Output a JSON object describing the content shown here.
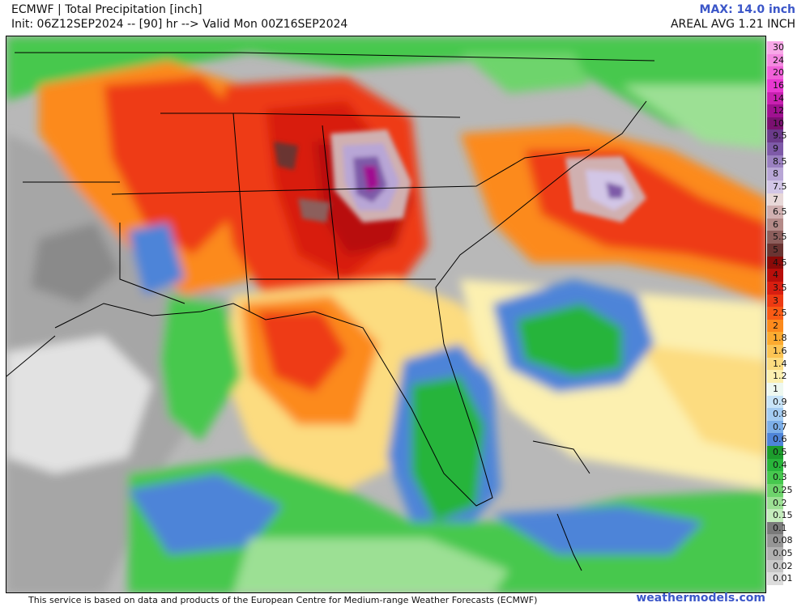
{
  "header": {
    "title": "ECMWF | Total Precipitation [inch]",
    "subtitle": "Init: 06Z12SEP2024 -- [90] hr --> Valid Mon 00Z16SEP2024",
    "max_label": "MAX: 14.0 inch",
    "areal_label": "AREAL AVG 1.21 INCH"
  },
  "legend": {
    "unit": "inch",
    "levels": [
      {
        "label": "30",
        "color": "#f8a8e8"
      },
      {
        "label": "24",
        "color": "#f488e0"
      },
      {
        "label": "20",
        "color": "#f060d8"
      },
      {
        "label": "16",
        "color": "#e838d0"
      },
      {
        "label": "14",
        "color": "#c820b0"
      },
      {
        "label": "12",
        "color": "#a01090"
      },
      {
        "label": "10",
        "color": "#7a1070"
      },
      {
        "label": "9.5",
        "color": "#6a3a8a"
      },
      {
        "label": "9",
        "color": "#7e5aa8"
      },
      {
        "label": "8.5",
        "color": "#9a80c0"
      },
      {
        "label": "8",
        "color": "#b8a6d6"
      },
      {
        "label": "7.5",
        "color": "#d2c6e6"
      },
      {
        "label": "7",
        "color": "#e8d8d8"
      },
      {
        "label": "6.5",
        "color": "#d0b0b0"
      },
      {
        "label": "6",
        "color": "#b48a88"
      },
      {
        "label": "5.5",
        "color": "#8c5e5c"
      },
      {
        "label": "5",
        "color": "#6a3432"
      },
      {
        "label": "4.5",
        "color": "#8a0a08"
      },
      {
        "label": "4",
        "color": "#b80e0a"
      },
      {
        "label": "3.5",
        "color": "#d81e10"
      },
      {
        "label": "3",
        "color": "#ee3a12"
      },
      {
        "label": "2.5",
        "color": "#f85a14"
      },
      {
        "label": "2",
        "color": "#fc8a1c"
      },
      {
        "label": "1.8",
        "color": "#fcaa30"
      },
      {
        "label": "1.6",
        "color": "#fcc454"
      },
      {
        "label": "1.4",
        "color": "#fcdc80"
      },
      {
        "label": "1.2",
        "color": "#fcf0b0"
      },
      {
        "label": "1",
        "color": "#eef8f0"
      },
      {
        "label": "0.9",
        "color": "#c8e4f8"
      },
      {
        "label": "0.8",
        "color": "#a4ccf2"
      },
      {
        "label": "0.7",
        "color": "#7caee8"
      },
      {
        "label": "0.6",
        "color": "#4e84d8"
      },
      {
        "label": "0.5",
        "color": "#1c9c2c"
      },
      {
        "label": "0.4",
        "color": "#28b43a"
      },
      {
        "label": "0.3",
        "color": "#46c84e"
      },
      {
        "label": "0.25",
        "color": "#6ed46c"
      },
      {
        "label": "0.2",
        "color": "#9ce094"
      },
      {
        "label": "0.15",
        "color": "#c4ecbc"
      },
      {
        "label": "0.1",
        "color": "#7a7a7a"
      },
      {
        "label": "0.08",
        "color": "#969696"
      },
      {
        "label": "0.05",
        "color": "#b0b0b0"
      },
      {
        "label": "0.02",
        "color": "#c8c8c8"
      },
      {
        "label": "0.01",
        "color": "#dcdcdc"
      }
    ]
  },
  "footer": {
    "attribution": "This service is based on data and products of the European Centre for Medium-range Weather Forecasts (ECMWF)",
    "site": "weathermodels.com"
  }
}
